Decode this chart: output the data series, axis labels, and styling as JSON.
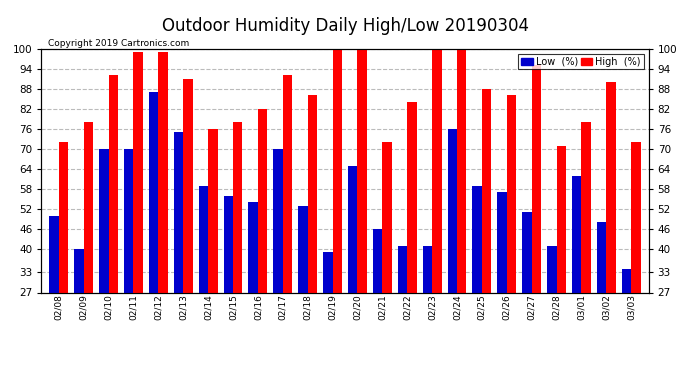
{
  "title": "Outdoor Humidity Daily High/Low 20190304",
  "copyright": "Copyright 2019 Cartronics.com",
  "dates": [
    "02/08",
    "02/09",
    "02/10",
    "02/11",
    "02/12",
    "02/13",
    "02/14",
    "02/15",
    "02/16",
    "02/17",
    "02/18",
    "02/19",
    "02/20",
    "02/21",
    "02/22",
    "02/23",
    "02/24",
    "02/25",
    "02/26",
    "02/27",
    "02/28",
    "03/01",
    "03/02",
    "03/03"
  ],
  "high": [
    72,
    78,
    92,
    99,
    99,
    91,
    76,
    78,
    82,
    92,
    86,
    100,
    100,
    72,
    84,
    100,
    100,
    88,
    86,
    95,
    71,
    78,
    90,
    72
  ],
  "low": [
    50,
    40,
    70,
    70,
    87,
    75,
    59,
    56,
    54,
    70,
    53,
    39,
    65,
    46,
    41,
    41,
    76,
    59,
    57,
    51,
    41,
    62,
    48,
    34
  ],
  "high_color": "#ff0000",
  "low_color": "#0000cc",
  "ylim_min": 27,
  "ylim_max": 100,
  "yticks": [
    27,
    33,
    40,
    46,
    52,
    58,
    64,
    70,
    76,
    82,
    88,
    94,
    100
  ],
  "background_color": "#ffffff",
  "grid_color": "#bbbbbb",
  "title_fontsize": 12,
  "legend_low_label": "Low  (%)",
  "legend_high_label": "High  (%)"
}
